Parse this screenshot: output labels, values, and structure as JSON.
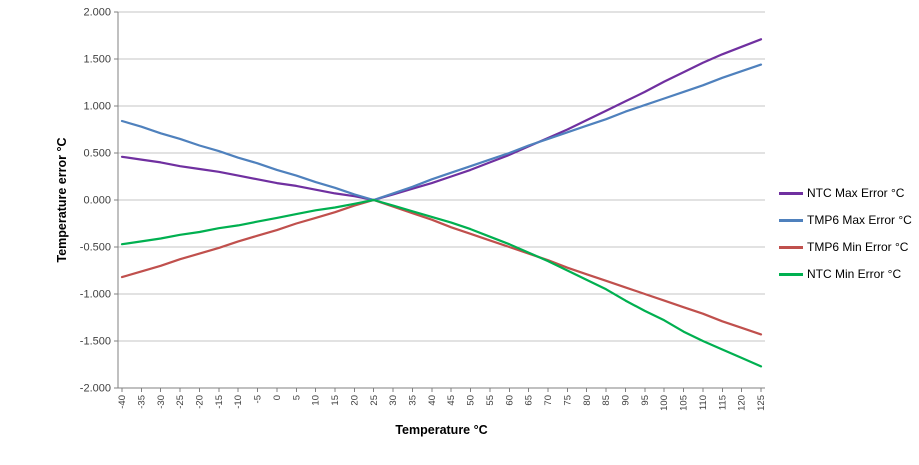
{
  "chart_data": {
    "type": "line",
    "title": "",
    "xlabel": "Temperature °C",
    "ylabel": "Temperature error °C",
    "ylim": [
      -2.0,
      2.0
    ],
    "yticks": [
      "2.000",
      "1.500",
      "1.000",
      "0.500",
      "0.000",
      "-0.500",
      "-1.000",
      "-1.500",
      "-2.000"
    ],
    "grid": "horizontal",
    "legend_position": "right",
    "x": [
      -40,
      -35,
      -30,
      -25,
      -20,
      -15,
      -10,
      -5,
      0,
      5,
      10,
      15,
      20,
      25,
      30,
      35,
      40,
      45,
      50,
      55,
      60,
      65,
      70,
      75,
      80,
      85,
      90,
      95,
      100,
      105,
      110,
      115,
      120,
      125
    ],
    "series": [
      {
        "name": "NTC Max Error °C",
        "color": "#7030A0",
        "values": [
          0.46,
          0.43,
          0.4,
          0.36,
          0.33,
          0.3,
          0.26,
          0.22,
          0.18,
          0.15,
          0.11,
          0.07,
          0.04,
          0.0,
          0.06,
          0.12,
          0.18,
          0.25,
          0.32,
          0.4,
          0.48,
          0.57,
          0.66,
          0.75,
          0.85,
          0.95,
          1.05,
          1.15,
          1.26,
          1.36,
          1.46,
          1.55,
          1.63,
          1.71
        ]
      },
      {
        "name": "TMP6 Max Error °C",
        "color": "#4F81BD",
        "values": [
          0.84,
          0.78,
          0.71,
          0.65,
          0.58,
          0.52,
          0.45,
          0.39,
          0.32,
          0.26,
          0.19,
          0.13,
          0.06,
          0.0,
          0.07,
          0.14,
          0.22,
          0.29,
          0.36,
          0.43,
          0.5,
          0.58,
          0.65,
          0.72,
          0.79,
          0.86,
          0.94,
          1.01,
          1.08,
          1.15,
          1.22,
          1.3,
          1.37,
          1.44
        ]
      },
      {
        "name": "TMP6 Min Error °C",
        "color": "#C0504D",
        "values": [
          -0.82,
          -0.76,
          -0.7,
          -0.63,
          -0.57,
          -0.51,
          -0.44,
          -0.38,
          -0.32,
          -0.25,
          -0.19,
          -0.13,
          -0.06,
          0.0,
          -0.07,
          -0.14,
          -0.21,
          -0.29,
          -0.36,
          -0.43,
          -0.5,
          -0.57,
          -0.64,
          -0.72,
          -0.79,
          -0.86,
          -0.93,
          -1.0,
          -1.07,
          -1.14,
          -1.21,
          -1.29,
          -1.36,
          -1.43
        ]
      },
      {
        "name": "NTC Min Error °C",
        "color": "#00B050",
        "values": [
          -0.47,
          -0.44,
          -0.41,
          -0.37,
          -0.34,
          -0.3,
          -0.27,
          -0.23,
          -0.19,
          -0.15,
          -0.11,
          -0.08,
          -0.04,
          0.0,
          -0.06,
          -0.12,
          -0.18,
          -0.24,
          -0.31,
          -0.39,
          -0.47,
          -0.56,
          -0.65,
          -0.75,
          -0.85,
          -0.95,
          -1.07,
          -1.18,
          -1.28,
          -1.4,
          -1.5,
          -1.59,
          -1.68,
          -1.77
        ]
      }
    ],
    "colors": {
      "gridline": "#C6C6C6",
      "axis_line": "#808080",
      "tick_label": "#3F3F3F"
    }
  }
}
